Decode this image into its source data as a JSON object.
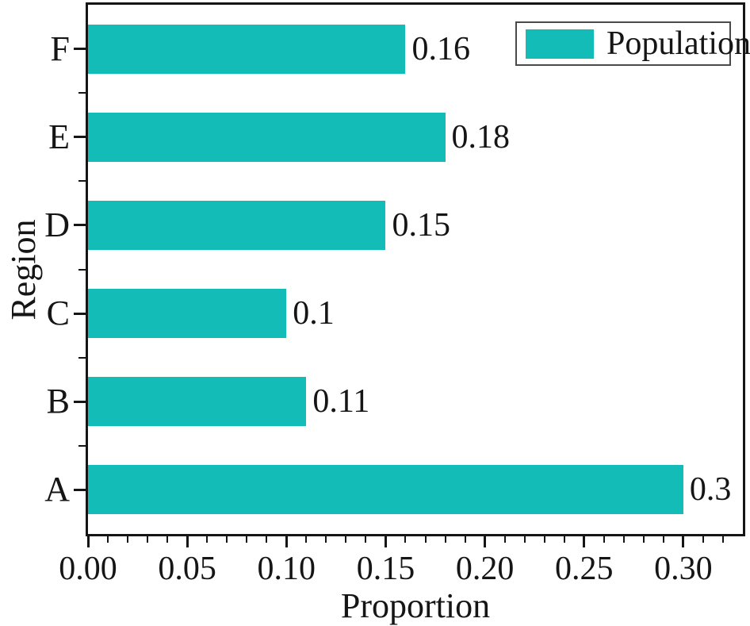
{
  "chart_data": {
    "type": "bar",
    "orientation": "horizontal",
    "title": "",
    "xlabel": "Proportion",
    "ylabel": "Region",
    "categories": [
      "A",
      "B",
      "C",
      "D",
      "E",
      "F"
    ],
    "categories_order_note": "bottom-to-top",
    "series": [
      {
        "name": "Population",
        "values": [
          0.3,
          0.11,
          0.1,
          0.15,
          0.18,
          0.16
        ],
        "color": "#13bcb6"
      }
    ],
    "bar_value_labels": [
      "0.3",
      "0.11",
      "0.1",
      "0.15",
      "0.18",
      "0.16"
    ],
    "xlim": [
      0,
      0.33
    ],
    "x_major_tick_labels": [
      "0.00",
      "0.05",
      "0.10",
      "0.15",
      "0.20",
      "0.25",
      "0.30"
    ],
    "x_minor_step": 0.01,
    "grid": false,
    "axis_color": "#151515",
    "legend": {
      "position": "upper-right",
      "entries": [
        {
          "label": "Population",
          "color": "#13bcb6"
        }
      ]
    }
  }
}
